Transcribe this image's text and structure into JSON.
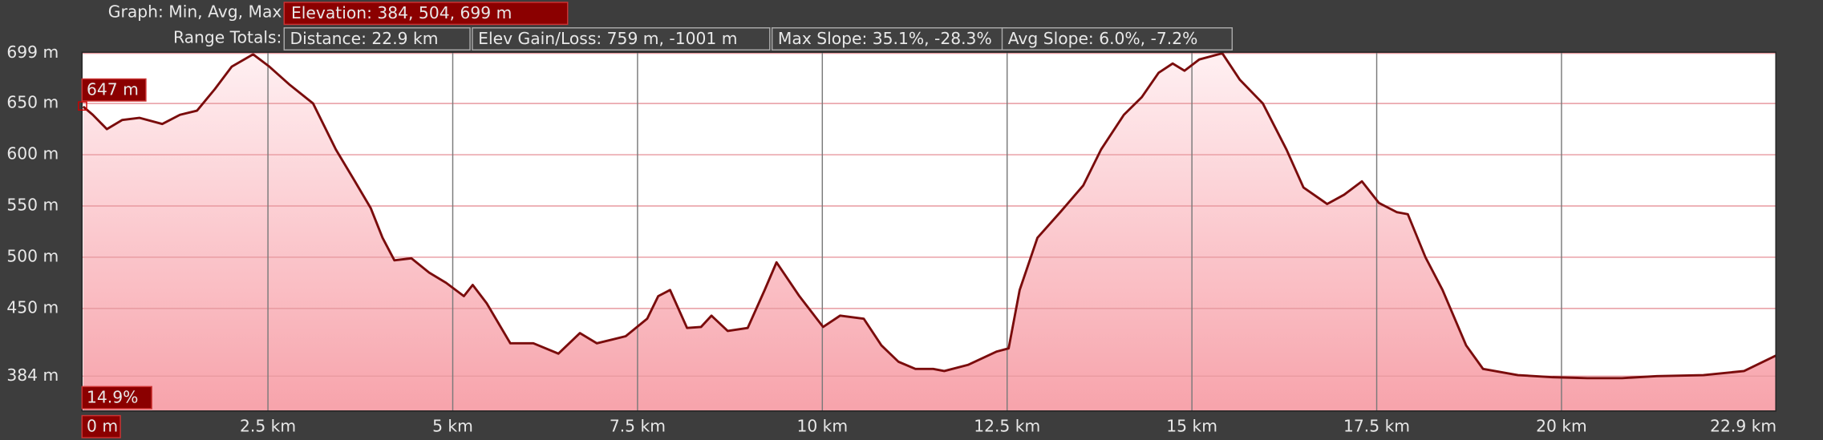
{
  "header": {
    "graph_label": "Graph: Min, Avg, Max",
    "elevation": "Elevation: 384, 504, 699 m",
    "range_label": "Range Totals:",
    "totals": [
      "Distance: 22.9 km",
      "Elev Gain/Loss: 759 m, -1001 m",
      "Max Slope: 35.1%, -28.3%",
      "Avg Slope: 6.0%, -7.2%"
    ]
  },
  "chart_data": {
    "type": "area",
    "color": "#7a0c0c",
    "cursor_elevation": "647 m",
    "cursor_slope": "14.9%",
    "x": [
      0,
      0.13,
      0.32,
      0.53,
      0.76,
      1.07,
      1.31,
      1.54,
      1.78,
      2.01,
      2.3,
      2.52,
      2.8,
      3.11,
      3.42,
      3.66,
      3.89,
      4.05,
      4.21,
      4.44,
      4.68,
      4.91,
      5.15,
      5.27,
      5.46,
      5.78,
      6.09,
      6.43,
      6.72,
      6.95,
      7.34,
      7.63,
      7.78,
      7.94,
      8.17,
      8.36,
      8.5,
      8.72,
      8.99,
      9.22,
      9.38,
      9.69,
      10.01,
      10.24,
      10.56,
      10.8,
      11.03,
      11.26,
      11.5,
      11.65,
      11.97,
      12.36,
      12.52,
      12.67,
      12.91,
      13.22,
      13.53,
      13.77,
      14.08,
      14.32,
      14.55,
      14.74,
      14.9,
      15.1,
      15.41,
      15.65,
      15.96,
      16.28,
      16.51,
      16.83,
      17.06,
      17.3,
      17.53,
      17.77,
      17.92,
      18.16,
      18.39,
      18.71,
      18.94,
      19.41,
      19.88,
      20.35,
      20.82,
      21.29,
      21.92,
      22.47,
      22.9
    ],
    "values": [
      647,
      639,
      625,
      634,
      636,
      630,
      639,
      643,
      664,
      686,
      698,
      686,
      668,
      650,
      605,
      576,
      548,
      519,
      497,
      499,
      485,
      475,
      462,
      473,
      455,
      416,
      416,
      406,
      426,
      416,
      423,
      440,
      462,
      468,
      431,
      432,
      443,
      428,
      431,
      468,
      495,
      462,
      432,
      443,
      440,
      414,
      398,
      391,
      391,
      389,
      395,
      408,
      411,
      468,
      519,
      544,
      570,
      605,
      639,
      656,
      680,
      689,
      682,
      693,
      699,
      673,
      650,
      605,
      568,
      552,
      561,
      574,
      553,
      544,
      542,
      500,
      468,
      414,
      391,
      385,
      383,
      382,
      382,
      384,
      385,
      389,
      404
    ],
    "xlim": [
      0,
      22.9
    ],
    "ylim": [
      350,
      700
    ],
    "xticks": [
      {
        "value": 0,
        "label": "0 m"
      },
      {
        "value": 2.5,
        "label": "2.5 km"
      },
      {
        "value": 5,
        "label": "5 km"
      },
      {
        "value": 7.5,
        "label": "7.5 km"
      },
      {
        "value": 10,
        "label": "10 km"
      },
      {
        "value": 12.5,
        "label": "12.5 km"
      },
      {
        "value": 15,
        "label": "15 km"
      },
      {
        "value": 17.5,
        "label": "17.5 km"
      },
      {
        "value": 20,
        "label": "20 km"
      },
      {
        "value": 22.9,
        "label": "22.9 km"
      }
    ],
    "yticks": [
      {
        "value": 384,
        "label": "384 m"
      },
      {
        "value": 450,
        "label": "450 m"
      },
      {
        "value": 500,
        "label": "500 m"
      },
      {
        "value": 550,
        "label": "550 m"
      },
      {
        "value": 600,
        "label": "600 m"
      },
      {
        "value": 650,
        "label": "650 m"
      },
      {
        "value": 699,
        "label": "699 m"
      }
    ],
    "grid": true
  }
}
